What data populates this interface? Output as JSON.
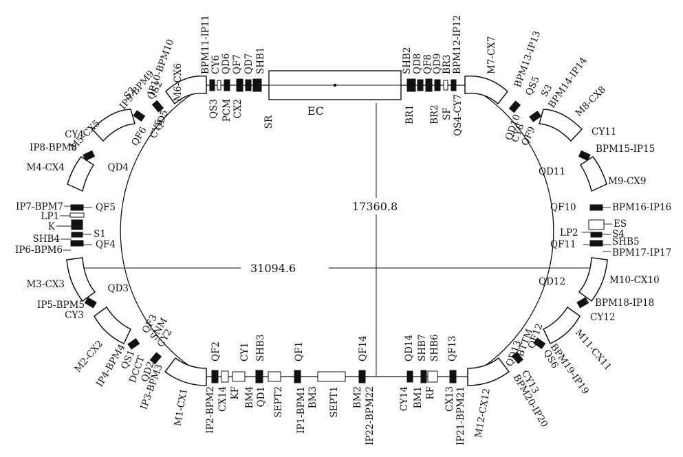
{
  "diagram": {
    "dimensions": {
      "width": "31094.6",
      "height": "17360.8"
    },
    "section_label": "EC",
    "labels": {
      "top_left": [
        "SR",
        "SHB1",
        "QD7",
        "CX2",
        "QF7",
        "PCM",
        "QD6",
        "CY6",
        "QS3",
        "BPM11-IP11",
        "M6-CX6",
        "QD5",
        "IP10-BPM10",
        "CY5",
        "QS2",
        "QF6",
        "IP9-BPM9",
        "S2",
        "M5-CX5"
      ],
      "top_right": [
        "SHB2",
        "BR1",
        "QD8",
        "QF8",
        "BR2",
        "QD9",
        "SF",
        "BR3",
        "QS4-CY7",
        "BPM12-IP12",
        "M7-CX7",
        "BPM13-IP13",
        "QD10",
        "QS5",
        "CY8",
        "S3",
        "QF9",
        "BPM14-IP14",
        "M8-CX8"
      ],
      "left": [
        "CY4",
        "IP8-BPM8",
        "QD4",
        "M4-CX4",
        "IP7-BPM7",
        "QF5",
        "LP1",
        "K",
        "S1",
        "SHB4",
        "QF4",
        "IP6-BPM6",
        "M3-CX3",
        "QD3",
        "IP5-BPM5",
        "CY3"
      ],
      "right": [
        "CY11",
        "QD11",
        "BPM15-IP15",
        "M9-CX9",
        "QF10",
        "BPM16-IP16",
        "ES",
        "LP2",
        "S4",
        "QF11",
        "SHB5",
        "BPM17-IP17",
        "QD12",
        "M10-CX10",
        "BPM18-IP18",
        "CY12"
      ],
      "bottom_left": [
        "M2-CX2",
        "QF3",
        "SNM",
        "CY2",
        "IP4-BPM4",
        "QS1",
        "DCCT",
        "QD2",
        "IP3-BPM3",
        "M1-CX1",
        "QF2",
        "CY1",
        "IP2-BPM2",
        "CX14",
        "KF",
        "SHB3",
        "BM4",
        "QD1",
        "SEPT2",
        "QF1",
        "IP1-BPM1",
        "BM3",
        "SEPT1",
        "QF14",
        "BM2",
        "IP22-BPM22"
      ],
      "bottom_right": [
        "CY14",
        "QD14",
        "BM1",
        "SHB7",
        "RF",
        "SHB6",
        "QF13",
        "CX13",
        "IP21-BPM21",
        "M12-CX12",
        "QD13",
        "BTTM",
        "QF12",
        "CY13",
        "BPM20-IP20",
        "QS6",
        "BPM19-IP19",
        "M11-CX11"
      ]
    }
  }
}
